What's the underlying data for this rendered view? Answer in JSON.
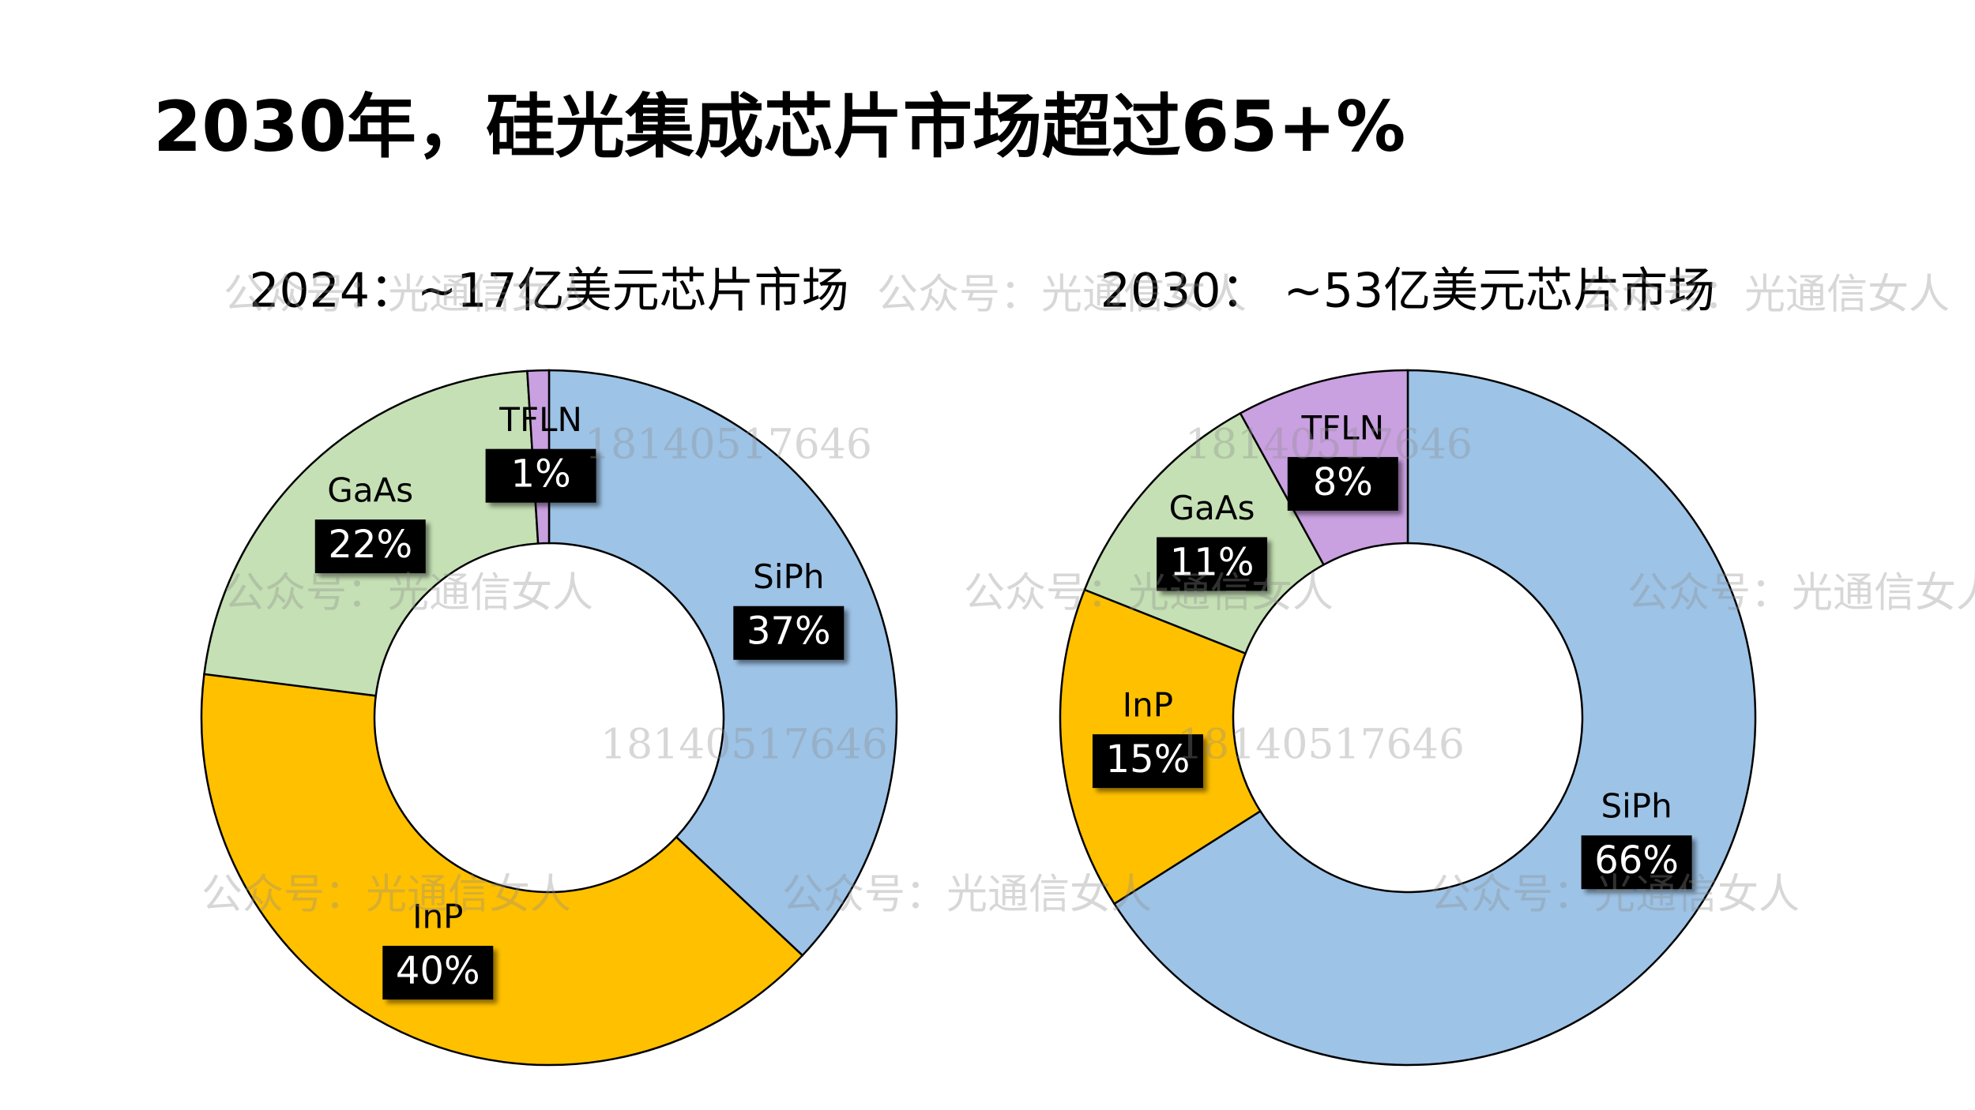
{
  "title": "2030年，硅光集成芯片市场超过65+%",
  "watermarks": [
    "公众号：光通信女人",
    "18140517646"
  ],
  "chart_data": [
    {
      "type": "donut",
      "title": "2024：~17亿美元芯片市场",
      "categories": [
        "SiPh",
        "InP",
        "GaAs",
        "TFLN"
      ],
      "values": [
        37,
        40,
        22,
        1
      ],
      "value_labels": [
        "37%",
        "40%",
        "22%",
        "1%"
      ],
      "colors": [
        "#9dc3e6",
        "#ffc000",
        "#c5e0b4",
        "#c9a0e0"
      ]
    },
    {
      "type": "donut",
      "title": "2030： ~53亿美元芯片市场",
      "categories": [
        "SiPh",
        "InP",
        "GaAs",
        "TFLN"
      ],
      "values": [
        66,
        15,
        11,
        8
      ],
      "value_labels": [
        "66%",
        "15%",
        "11%",
        "8%"
      ],
      "colors": [
        "#9dc3e6",
        "#ffc000",
        "#c5e0b4",
        "#c9a0e0"
      ]
    }
  ]
}
